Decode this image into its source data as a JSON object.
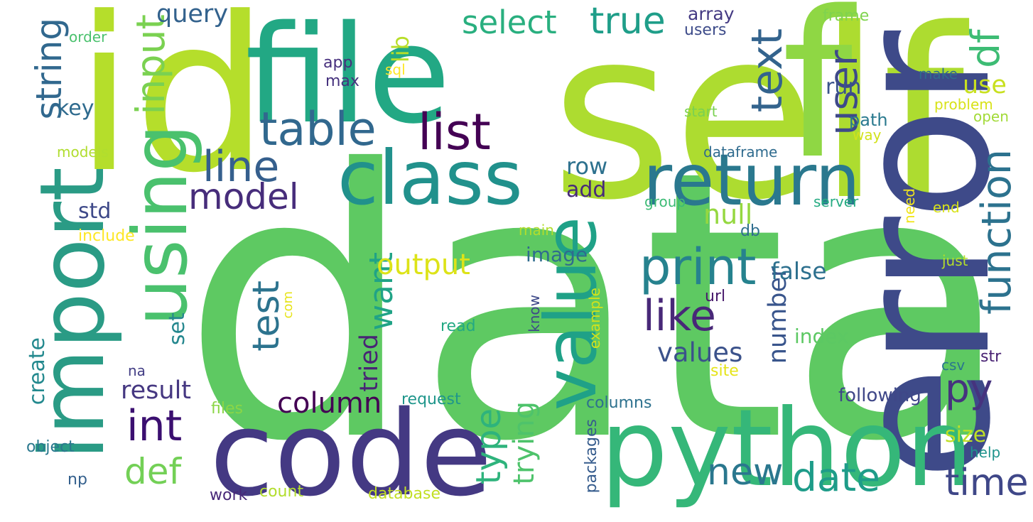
{
  "word_cloud": {
    "words": [
      {
        "text": "data",
        "color": "#5ec962"
      },
      {
        "text": "self",
        "color": "#addc30"
      },
      {
        "text": "id",
        "color": "#b5de2b"
      },
      {
        "text": "file",
        "color": "#22a884"
      },
      {
        "text": "f",
        "color": "#8fd744"
      },
      {
        "text": "error",
        "color": "#3e4a89"
      },
      {
        "text": "code",
        "color": "#443983"
      },
      {
        "text": "python",
        "color": "#35b779"
      },
      {
        "text": "import",
        "color": "#2a9b85"
      },
      {
        "text": "return",
        "color": "#2a788e"
      },
      {
        "text": "class",
        "color": "#21918c"
      },
      {
        "text": "using",
        "color": "#4ac16d"
      },
      {
        "text": "value",
        "color": "#1fa187"
      },
      {
        "text": "table",
        "color": "#31688e"
      },
      {
        "text": "list",
        "color": "#440154"
      },
      {
        "text": "print",
        "color": "#26828e"
      },
      {
        "text": "int",
        "color": "#3b0f70"
      },
      {
        "text": "like",
        "color": "#482878"
      },
      {
        "text": "line",
        "color": "#355f8d"
      },
      {
        "text": "model",
        "color": "#472d7b"
      },
      {
        "text": "function",
        "color": "#2c728e"
      },
      {
        "text": "text",
        "color": "#33638d"
      },
      {
        "text": "true",
        "color": "#1f9e89"
      },
      {
        "text": "select",
        "color": "#29af7f"
      },
      {
        "text": "input",
        "color": "#7ad151"
      },
      {
        "text": "string",
        "color": "#31688e"
      },
      {
        "text": "user",
        "color": "#3e4989"
      },
      {
        "text": "df",
        "color": "#3dbc74"
      },
      {
        "text": "py",
        "color": "#46337e"
      },
      {
        "text": "date",
        "color": "#1e9c89"
      },
      {
        "text": "time",
        "color": "#3f4788"
      },
      {
        "text": "new",
        "color": "#2a778e"
      },
      {
        "text": "test",
        "color": "#2c738e"
      },
      {
        "text": "want",
        "color": "#20a386"
      },
      {
        "text": "type",
        "color": "#2eb37c"
      },
      {
        "text": "def",
        "color": "#73d056"
      },
      {
        "text": "column",
        "color": "#440154"
      },
      {
        "text": "output",
        "color": "#dde318"
      },
      {
        "text": "values",
        "color": "#3b528b"
      },
      {
        "text": "null",
        "color": "#95d840"
      },
      {
        "text": "trying",
        "color": "#4ec36b"
      },
      {
        "text": "result",
        "color": "#453781"
      },
      {
        "text": "tried",
        "color": "#482475"
      },
      {
        "text": "number",
        "color": "#39558c"
      },
      {
        "text": "false",
        "color": "#2d708e"
      },
      {
        "text": "query",
        "color": "#33628d"
      },
      {
        "text": "use",
        "color": "#c8e020"
      },
      {
        "text": "run",
        "color": "#3a548c"
      },
      {
        "text": "row",
        "color": "#2d718e"
      },
      {
        "text": "add",
        "color": "#472a7a"
      },
      {
        "text": "size",
        "color": "#c0df25"
      },
      {
        "text": "image",
        "color": "#2f6c8e"
      },
      {
        "text": "set",
        "color": "#24878e"
      },
      {
        "text": "lib",
        "color": "#b8de29"
      },
      {
        "text": "create",
        "color": "#23898e"
      },
      {
        "text": "std",
        "color": "#3e4989"
      },
      {
        "text": "key",
        "color": "#2f6b8e"
      },
      {
        "text": "index",
        "color": "#5cc863"
      },
      {
        "text": "array",
        "color": "#443a83"
      },
      {
        "text": "following",
        "color": "#3f4788"
      },
      {
        "text": "path",
        "color": "#29798e"
      },
      {
        "text": "str",
        "color": "#482173"
      },
      {
        "text": "columns",
        "color": "#2d718e"
      },
      {
        "text": "packages",
        "color": "#365c8d"
      },
      {
        "text": "example",
        "color": "#d2e21b"
      },
      {
        "text": "request",
        "color": "#1f968b"
      },
      {
        "text": "site",
        "color": "#e5e419"
      },
      {
        "text": "database",
        "color": "#c2df23"
      },
      {
        "text": "count",
        "color": "#b2dd2d"
      },
      {
        "text": "read",
        "color": "#23a983"
      },
      {
        "text": "files",
        "color": "#8bd646"
      },
      {
        "text": "object",
        "color": "#2a788e"
      },
      {
        "text": "work",
        "color": "#482878"
      },
      {
        "text": "np",
        "color": "#34608d"
      },
      {
        "text": "help",
        "color": "#1f948c"
      },
      {
        "text": "include",
        "color": "#fde725"
      },
      {
        "text": "models",
        "color": "#b0dd2f"
      },
      {
        "text": "dataframe",
        "color": "#2f6b8e"
      },
      {
        "text": "main",
        "color": "#b2dd2d"
      },
      {
        "text": "sql",
        "color": "#fde725"
      },
      {
        "text": "app",
        "color": "#472f7d"
      },
      {
        "text": "max",
        "color": "#46327e"
      },
      {
        "text": "users",
        "color": "#3e4c8a"
      },
      {
        "text": "frame",
        "color": "#7fd34e"
      },
      {
        "text": "order",
        "color": "#4ac16d"
      },
      {
        "text": "make",
        "color": "#2f6b8e"
      },
      {
        "text": "problem",
        "color": "#d8e219"
      },
      {
        "text": "open",
        "color": "#a2da37"
      },
      {
        "text": "start",
        "color": "#7ad151"
      },
      {
        "text": "way",
        "color": "#d2e21b"
      },
      {
        "text": "group",
        "color": "#3cbb75"
      },
      {
        "text": "server",
        "color": "#25ab82"
      },
      {
        "text": "end",
        "color": "#d8e219"
      },
      {
        "text": "need",
        "color": "#f1e51d"
      },
      {
        "text": "db",
        "color": "#2e6e8e"
      },
      {
        "text": "just",
        "color": "#b5de2b"
      },
      {
        "text": "url",
        "color": "#481a6c"
      },
      {
        "text": "know",
        "color": "#3e4989"
      },
      {
        "text": "com",
        "color": "#e7e419"
      },
      {
        "text": "csv",
        "color": "#2a768e"
      },
      {
        "text": "na",
        "color": "#433e85"
      }
    ]
  }
}
